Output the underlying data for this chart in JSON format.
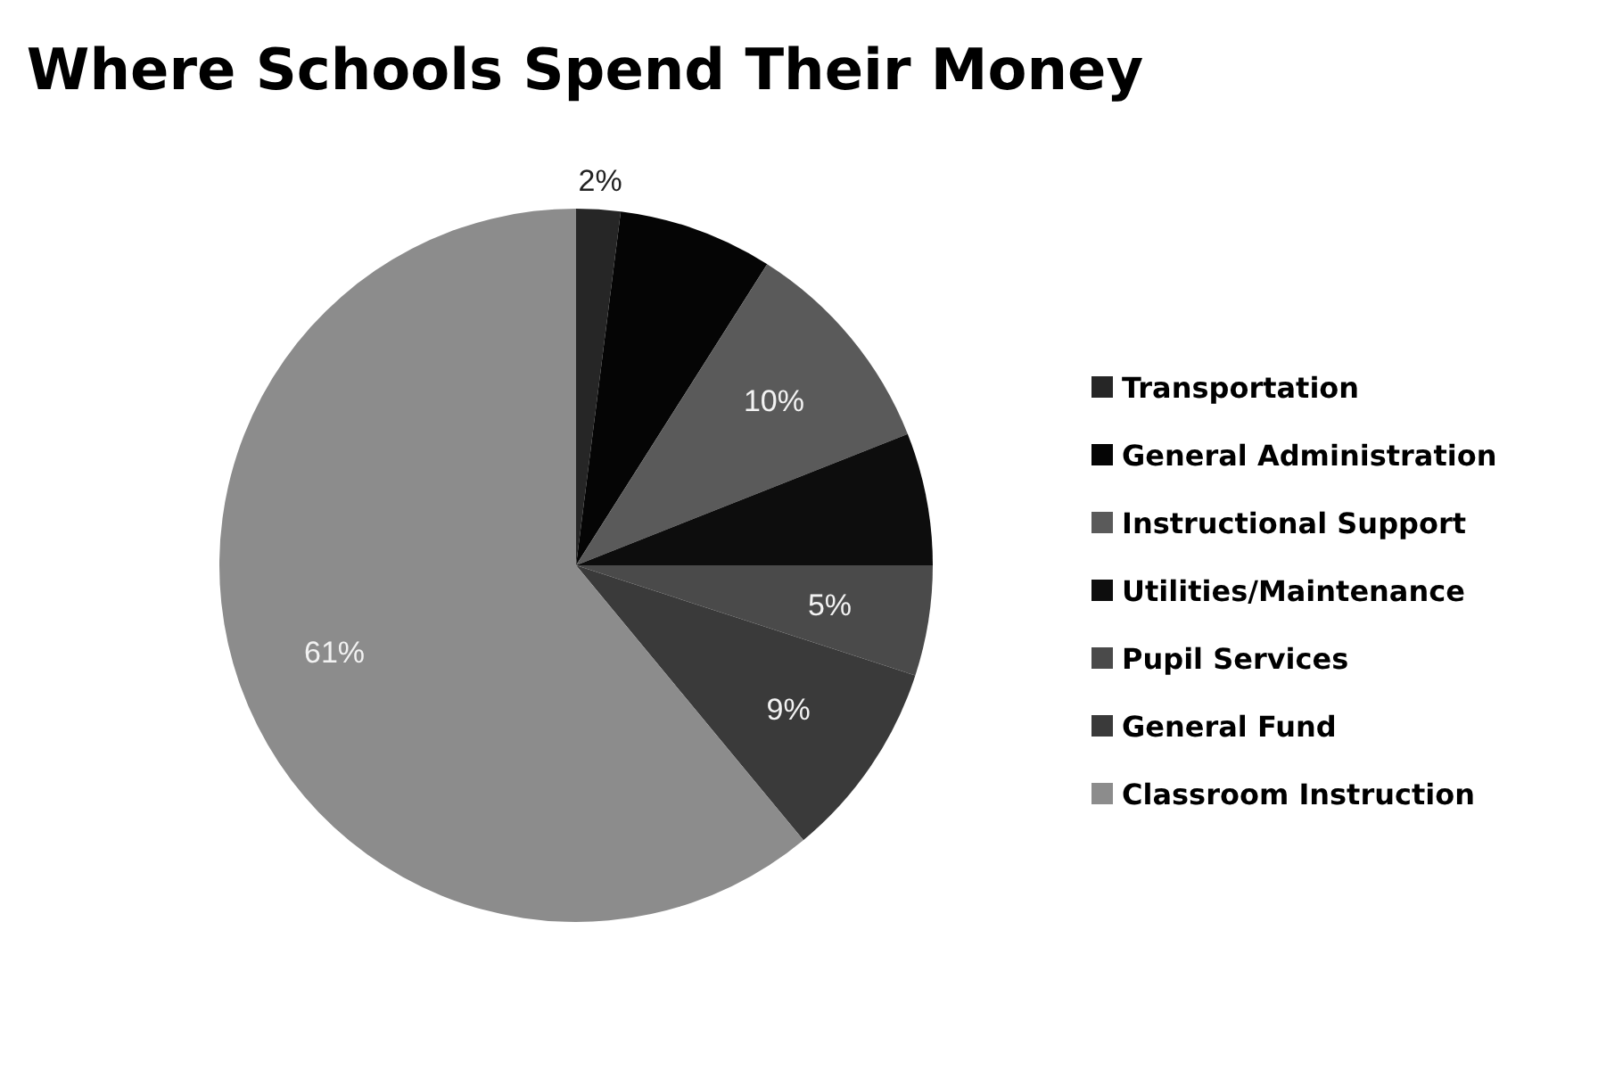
{
  "chart_data": {
    "type": "pie",
    "title": "Where Schools Spend Their Money",
    "categories": [
      "Transportation",
      "General Administration",
      "Instructional Support",
      "Utilities/Maintenance",
      "Pupil Services",
      "General Fund",
      "Classroom Instruction"
    ],
    "values": [
      2,
      7,
      10,
      6,
      5,
      9,
      61
    ],
    "value_labels": [
      "2%",
      null,
      "10%",
      null,
      "5%",
      "9%",
      "61%"
    ],
    "colors": [
      "#262626",
      "#050505",
      "#5a5a5a",
      "#0d0d0d",
      "#4a4a4a",
      "#3a3a3a",
      "#8c8c8c"
    ],
    "legend": "right"
  }
}
